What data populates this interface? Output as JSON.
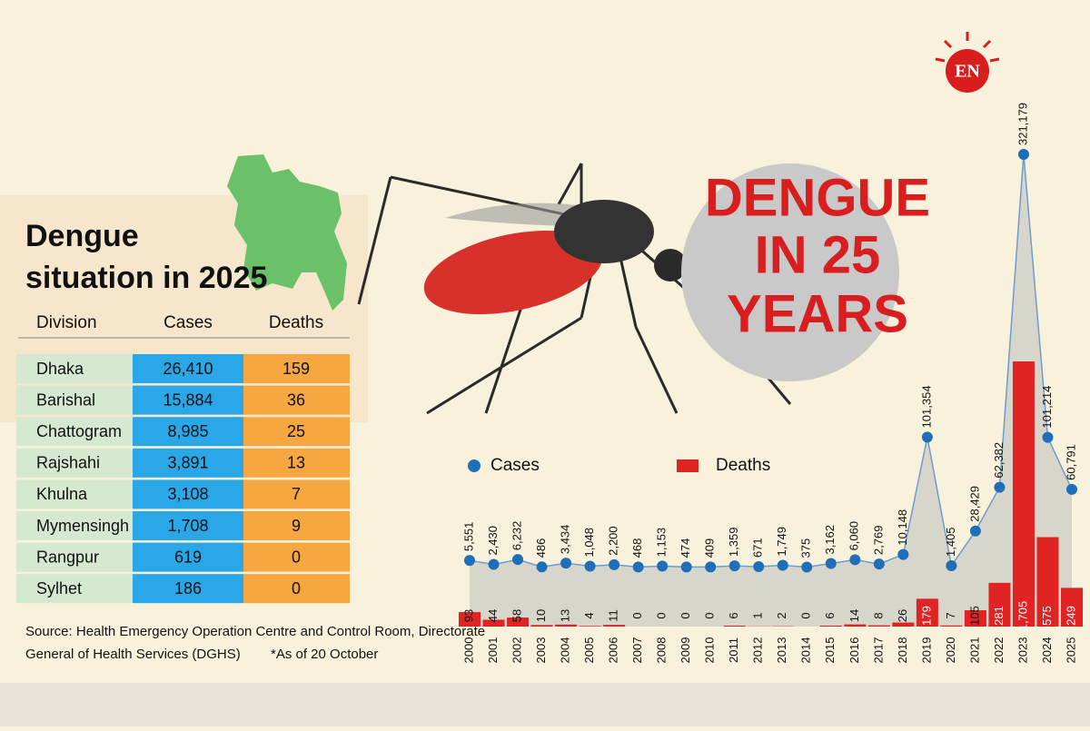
{
  "header": {
    "title_lines": [
      "Dengue",
      "situation in 2025"
    ],
    "badge": "EN",
    "headline_lines": [
      "DENGUE",
      "IN 25",
      "YEARS"
    ]
  },
  "table": {
    "columns": [
      "Division",
      "Cases",
      "Deaths"
    ],
    "rows": [
      [
        "Dhaka",
        "26,410",
        "159"
      ],
      [
        "Barishal",
        "15,884",
        "36"
      ],
      [
        "Chattogram",
        "8,985",
        "25"
      ],
      [
        "Rajshahi",
        "3,891",
        "13"
      ],
      [
        "Khulna",
        "3,108",
        "7"
      ],
      [
        "Mymensingh",
        "1,708",
        "9"
      ],
      [
        "Rangpur",
        "619",
        "0"
      ],
      [
        "Sylhet",
        "186",
        "0"
      ]
    ]
  },
  "footer": {
    "source_lines": [
      "Source: Health Emergency Operation Centre and Control Room, Directorate",
      "General of Health Services (DGHS)"
    ],
    "note": "*As of 20 October"
  },
  "chart_data": {
    "type": "combo",
    "categories": [
      "2000",
      "2001",
      "2002",
      "2003",
      "2004",
      "2005",
      "2006",
      "2007",
      "2008",
      "2009",
      "2010",
      "2011",
      "2012",
      "2013",
      "2014",
      "2015",
      "2016",
      "2017",
      "2018",
      "2019",
      "2020",
      "2021",
      "2022",
      "2023",
      "2024",
      "2025"
    ],
    "series": [
      {
        "name": "Cases",
        "type": "line",
        "color": "#1e6fb8",
        "values": [
          5551,
          2430,
          6232,
          486,
          3434,
          1048,
          2200,
          468,
          1153,
          474,
          409,
          1359,
          671,
          1749,
          375,
          3162,
          6060,
          2769,
          10148,
          101354,
          1405,
          28429,
          62382,
          321179,
          101214,
          60791
        ],
        "value_labels": [
          "5,551",
          "2,430",
          "6,232",
          "486",
          "3,434",
          "1,048",
          "2,200",
          "468",
          "1,153",
          "474",
          "409",
          "1,359",
          "671",
          "1,749",
          "375",
          "3,162",
          "6,060",
          "2,769",
          "10,148",
          "101,354",
          "1,405",
          "28,429",
          "62,382",
          "321,179",
          "101,214",
          "60,791"
        ]
      },
      {
        "name": "Deaths",
        "type": "bar",
        "color": "#e02424",
        "values": [
          93,
          44,
          58,
          10,
          13,
          4,
          11,
          0,
          0,
          0,
          0,
          6,
          1,
          2,
          0,
          6,
          14,
          8,
          26,
          179,
          7,
          105,
          281,
          1705,
          575,
          249
        ],
        "value_labels": [
          "93",
          "44",
          "58",
          "10",
          "13",
          "4",
          "11",
          "0",
          "0",
          "0",
          "0",
          "6",
          "1",
          "2",
          "0",
          "6",
          "14",
          "8",
          "26",
          "179",
          "7",
          "105",
          "281",
          "1,705",
          "575",
          "249"
        ]
      }
    ]
  }
}
